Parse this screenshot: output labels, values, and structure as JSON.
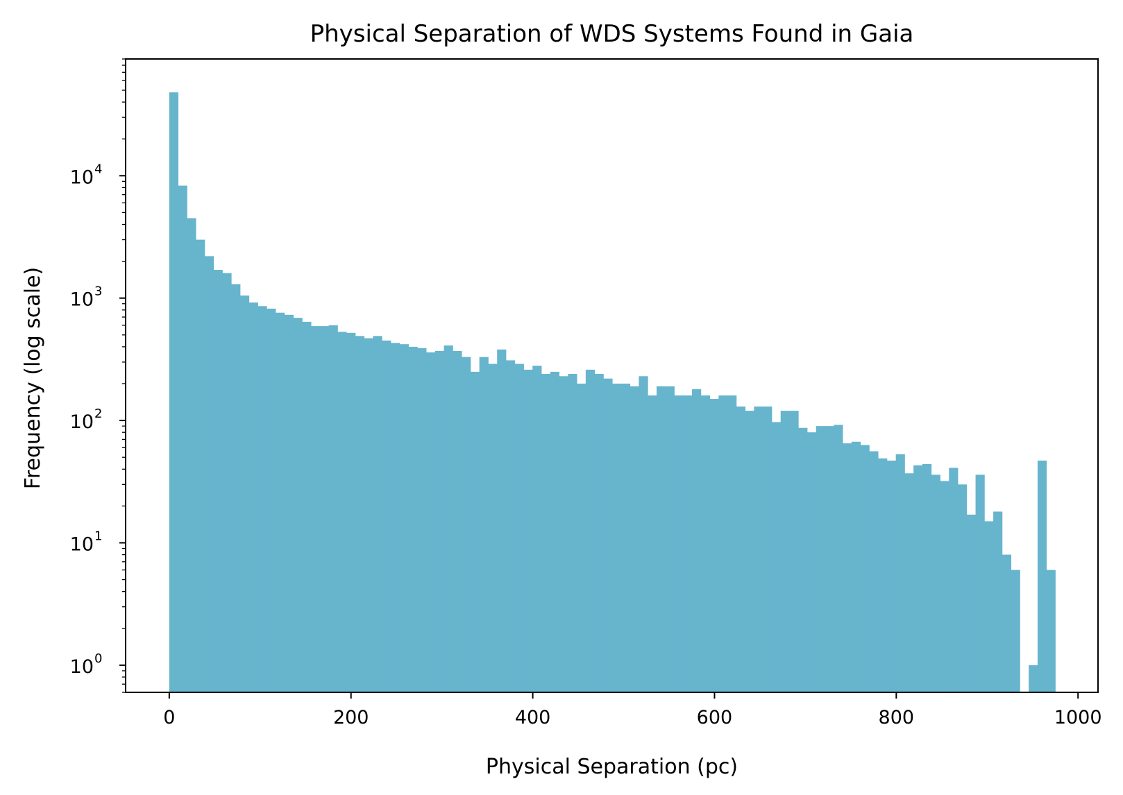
{
  "chart_data": {
    "type": "bar",
    "title": "Physical Separation of WDS Systems Found in Gaia",
    "xlabel": "Physical Separation (pc)",
    "ylabel": "Frequency (log scale)",
    "xlim": [
      -48,
      1022
    ],
    "ylim": [
      0.6,
      90000
    ],
    "yscale": "log",
    "grid": false,
    "legend": "none",
    "bar_color": "#67b4cd",
    "bin_width": 9.75,
    "bin_start": 0,
    "x_ticks": [
      {
        "value": 0,
        "label": "0"
      },
      {
        "value": 200,
        "label": "200"
      },
      {
        "value": 400,
        "label": "400"
      },
      {
        "value": 600,
        "label": "600"
      },
      {
        "value": 800,
        "label": "800"
      },
      {
        "value": 1000,
        "label": "1000"
      }
    ],
    "y_ticks": [
      {
        "value": 1,
        "base": "10",
        "exp": "0"
      },
      {
        "value": 10,
        "base": "10",
        "exp": "1"
      },
      {
        "value": 100,
        "base": "10",
        "exp": "2"
      },
      {
        "value": 1000,
        "base": "10",
        "exp": "3"
      },
      {
        "value": 10000,
        "base": "10",
        "exp": "4"
      }
    ],
    "values": [
      48000,
      8300,
      4500,
      3000,
      2200,
      1700,
      1600,
      1300,
      1050,
      920,
      860,
      820,
      760,
      730,
      690,
      640,
      590,
      590,
      600,
      530,
      520,
      490,
      470,
      490,
      450,
      430,
      420,
      400,
      390,
      360,
      370,
      410,
      370,
      330,
      250,
      330,
      290,
      380,
      310,
      290,
      260,
      280,
      240,
      250,
      230,
      240,
      200,
      260,
      240,
      220,
      200,
      200,
      190,
      230,
      160,
      190,
      190,
      160,
      160,
      180,
      160,
      150,
      160,
      160,
      130,
      120,
      130,
      130,
      97,
      120,
      120,
      87,
      80,
      90,
      90,
      92,
      65,
      67,
      63,
      56,
      49,
      47,
      53,
      37,
      43,
      44,
      36,
      32,
      41,
      30,
      17,
      36,
      15,
      18,
      8,
      6,
      0,
      1,
      47,
      6
    ]
  }
}
